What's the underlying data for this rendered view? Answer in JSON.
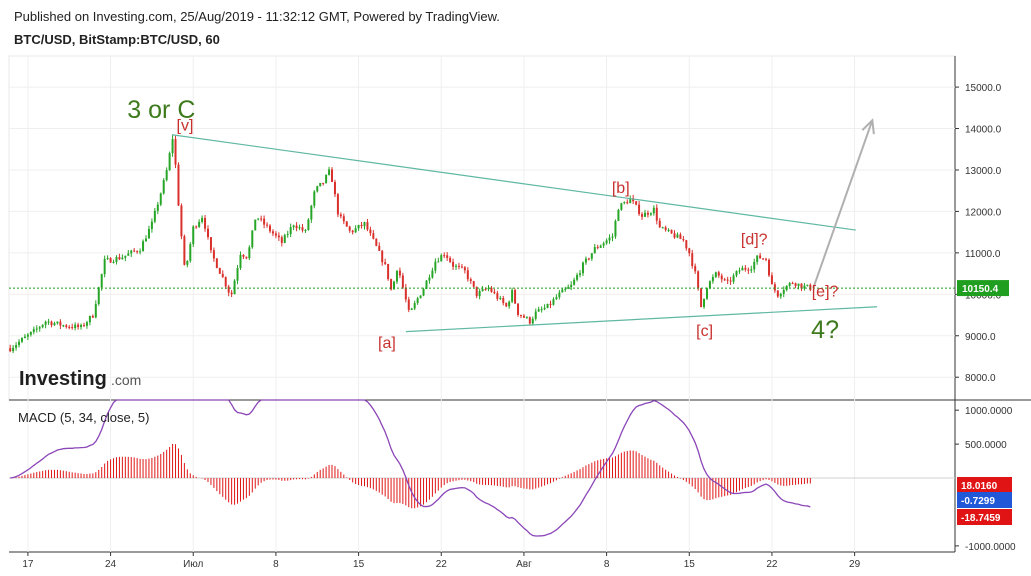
{
  "header": {
    "published": "Published on Investing.com, 25/Aug/2019 - 11:32:12 GMT, Powered by TradingView.",
    "symbol": "BTC/USD, BitStamp:BTC/USD, 60"
  },
  "logo": {
    "brand": "Investing",
    "suffix": ".com"
  },
  "colors": {
    "up": "#26a526",
    "down": "#d9302c",
    "trend": "#5fb8a2",
    "macd": "#8b46b8",
    "hist": "#e01414",
    "price_line": "#1f9e1f",
    "arrow": "#b0b0b0"
  },
  "chart_data": [
    {
      "type": "candlestick",
      "title": "BTC/USD, BitStamp:BTC/USD, 60",
      "x_ticks": [
        "17",
        "24",
        "Июл",
        "8",
        "15",
        "22",
        "Авг",
        "8",
        "15",
        "22",
        "29"
      ],
      "x_tick_days": [
        0,
        7,
        14,
        21,
        28,
        35,
        42,
        49,
        56,
        63,
        70
      ],
      "x_range_days": [
        -1.6,
        78.5
      ],
      "y_ticks": [
        "15000.0",
        "14000.0",
        "13000.0",
        "12000.0",
        "11000.0",
        "10000.0",
        "9000.0",
        "8000.0"
      ],
      "ylim": [
        7450,
        15750
      ],
      "current_price": "10150.4",
      "close_path": [
        [
          -1.5,
          8700
        ],
        [
          0.5,
          9100
        ],
        [
          1.5,
          9350
        ],
        [
          3,
          9250
        ],
        [
          4.5,
          9200
        ],
        [
          5.5,
          9500
        ],
        [
          6.5,
          10800
        ],
        [
          8,
          10900
        ],
        [
          9.5,
          11100
        ],
        [
          10.5,
          11700
        ],
        [
          11.7,
          12900
        ],
        [
          12.3,
          13850
        ],
        [
          12.8,
          12000
        ],
        [
          13.3,
          10500
        ],
        [
          14,
          11600
        ],
        [
          14.8,
          11900
        ],
        [
          15.5,
          11000
        ],
        [
          16.5,
          10400
        ],
        [
          17.2,
          9950
        ],
        [
          18,
          11000
        ],
        [
          18.6,
          10900
        ],
        [
          19.3,
          11900
        ],
        [
          20.3,
          11600
        ],
        [
          21.5,
          11250
        ],
        [
          22.5,
          11700
        ],
        [
          23.5,
          11500
        ],
        [
          24.3,
          12500
        ],
        [
          25,
          12700
        ],
        [
          25.6,
          13000
        ],
        [
          26.3,
          11900
        ],
        [
          27.3,
          11500
        ],
        [
          28.5,
          11700
        ],
        [
          29.4,
          11200
        ],
        [
          30.3,
          10650
        ],
        [
          30.8,
          10050
        ],
        [
          31.3,
          10700
        ],
        [
          31.8,
          10100
        ],
        [
          32.3,
          9500
        ],
        [
          33,
          9900
        ],
        [
          33.5,
          10150
        ],
        [
          34.5,
          10800
        ],
        [
          35.3,
          11000
        ],
        [
          36,
          10700
        ],
        [
          37,
          10550
        ],
        [
          38,
          10000
        ],
        [
          39,
          10150
        ],
        [
          40.5,
          9700
        ],
        [
          41,
          10050
        ],
        [
          41.5,
          9550
        ],
        [
          42.5,
          9350
        ],
        [
          43,
          9550
        ],
        [
          44,
          9700
        ],
        [
          45,
          10000
        ],
        [
          46,
          10200
        ],
        [
          47,
          10700
        ],
        [
          48,
          11100
        ],
        [
          49.5,
          11400
        ],
        [
          50,
          12100
        ],
        [
          51,
          12300
        ],
        [
          52,
          11900
        ],
        [
          53,
          12050
        ],
        [
          53.5,
          11600
        ],
        [
          54.5,
          11450
        ],
        [
          55.5,
          11300
        ],
        [
          56,
          11000
        ],
        [
          56.5,
          10500
        ],
        [
          57,
          9700
        ],
        [
          57.5,
          10200
        ],
        [
          58.3,
          10500
        ],
        [
          59.2,
          10250
        ],
        [
          60.3,
          10600
        ],
        [
          61.2,
          10650
        ],
        [
          61.8,
          10900
        ],
        [
          62.5,
          10850
        ],
        [
          63,
          10200
        ],
        [
          63.5,
          10000
        ],
        [
          64,
          10150
        ],
        [
          64.8,
          10300
        ],
        [
          65.5,
          10200
        ],
        [
          66.3,
          10150
        ]
      ],
      "annotations": [
        {
          "text": "3 or C",
          "style": "green",
          "day": 11.3,
          "price": 14250
        },
        {
          "text": "[v]",
          "style": "red",
          "day": 13.3,
          "price": 13950
        },
        {
          "text": "[b]",
          "style": "red",
          "day": 50.2,
          "price": 12450
        },
        {
          "text": "[d]?",
          "style": "red",
          "day": 61.5,
          "price": 11200
        },
        {
          "text": "[e]?",
          "style": "red",
          "day": 67.5,
          "price": 9950
        },
        {
          "text": "4?",
          "style": "green",
          "day": 67.5,
          "price": 8950
        },
        {
          "text": "[a]",
          "style": "red",
          "day": 30.4,
          "price": 8700
        },
        {
          "text": "[c]",
          "style": "red",
          "day": 57.3,
          "price": 9000
        }
      ],
      "trendlines": [
        {
          "from": [
            12.2,
            13850
          ],
          "to": [
            70.1,
            11550
          ]
        },
        {
          "from": [
            32.0,
            9100
          ],
          "to": [
            71.9,
            9700
          ]
        }
      ],
      "projection_arrow": {
        "from": [
          66.5,
          10150
        ],
        "to": [
          71.5,
          14200
        ]
      }
    },
    {
      "type": "line",
      "title": "MACD (5, 34, close, 5)",
      "y_ticks": [
        "1000.0000",
        "500.0000",
        "-1000.0000"
      ],
      "ylim": [
        -1090,
        1150
      ],
      "values_shown": [
        "18.0160",
        "-0.7299",
        "-18.7459"
      ],
      "value_colors": [
        "#e01414",
        "#2158d8",
        "#e01414"
      ]
    }
  ]
}
